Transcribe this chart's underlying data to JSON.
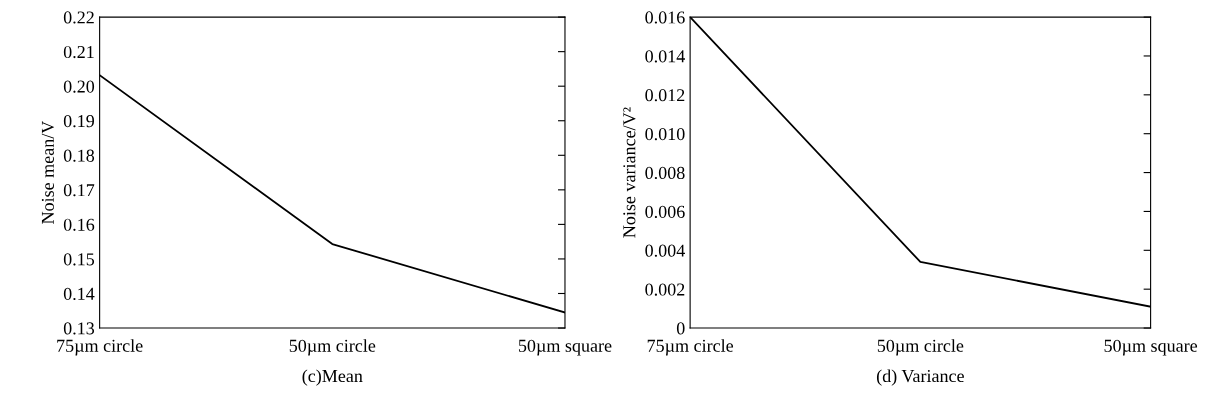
{
  "chart_data": [
    {
      "type": "line",
      "xlabel": "(c)Mean",
      "ylabel": "Noise mean/V",
      "categories": [
        "75µm circle",
        "50µm circle",
        "50µm square"
      ],
      "series": [
        {
          "color": "#000000",
          "values": [
            0.2032,
            0.1543,
            0.1345
          ]
        }
      ],
      "ylim": [
        0.13,
        0.22
      ],
      "yticks": [
        {
          "value": 0.13,
          "label": "0.13"
        },
        {
          "value": 0.14,
          "label": "0.14"
        },
        {
          "value": 0.15,
          "label": "0.15"
        },
        {
          "value": 0.16,
          "label": "0.16"
        },
        {
          "value": 0.17,
          "label": "0.17"
        },
        {
          "value": 0.18,
          "label": "0.18"
        },
        {
          "value": 0.19,
          "label": "0.19"
        },
        {
          "value": 0.2,
          "label": "0.20"
        },
        {
          "value": 0.21,
          "label": "0.21"
        },
        {
          "value": 0.22,
          "label": "0.22"
        }
      ],
      "grid": false,
      "legend": false,
      "marker": "none",
      "line_style": "solid"
    },
    {
      "type": "line",
      "xlabel": "(d) Variance",
      "ylabel": "Noise variance/V²",
      "categories": [
        "75µm circle",
        "50µm circle",
        "50µm square"
      ],
      "series": [
        {
          "color": "#000000",
          "values": [
            0.016,
            0.0034,
            0.0011
          ]
        }
      ],
      "ylim": [
        0,
        0.016
      ],
      "yticks": [
        0,
        {
          "value": 0.002,
          "label": "0.002"
        },
        {
          "value": 0.004,
          "label": "0.004"
        },
        {
          "value": 0.006,
          "label": "0.006"
        },
        {
          "value": 0.008,
          "label": "0.008"
        },
        {
          "value": 0.01,
          "label": "0.010"
        },
        {
          "value": 0.012,
          "label": "0.012"
        },
        {
          "value": 0.014,
          "label": "0.014"
        },
        {
          "value": 0.016,
          "label": "0.016"
        }
      ],
      "grid": false,
      "legend": false,
      "marker": "none",
      "line_style": "solid"
    }
  ]
}
